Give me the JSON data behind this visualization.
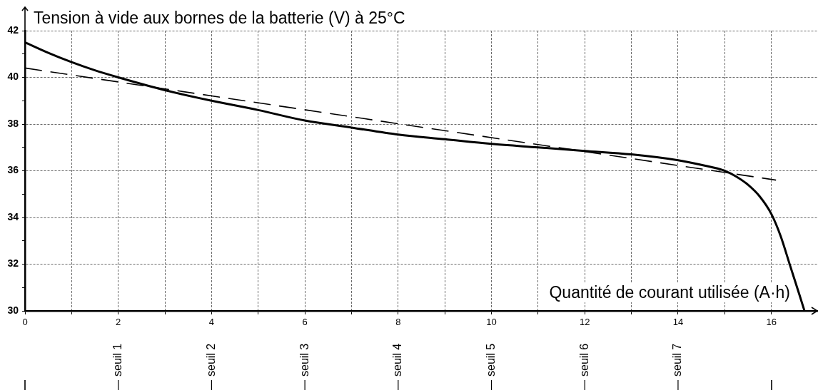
{
  "chart_data": {
    "type": "line",
    "xlabel": "Quantité de courant utilisée (A·h)",
    "ylabel": "Tension à vide aux bornes de la batterie (V) à 25°C",
    "series": [
      {
        "color": "#000000",
        "line_style": "solid",
        "x": [
          0,
          0.5,
          1,
          1.5,
          2,
          3,
          4,
          5,
          6,
          7,
          8,
          9,
          10,
          11,
          12,
          13,
          14,
          14.5,
          15,
          15.25,
          15.5,
          15.75,
          16,
          16.2,
          16.4,
          16.6,
          16.71
        ],
        "values": [
          41.5,
          41.05,
          40.65,
          40.3,
          40.0,
          39.45,
          39.0,
          38.6,
          38.15,
          37.85,
          37.55,
          37.35,
          37.15,
          37.0,
          36.85,
          36.7,
          36.45,
          36.25,
          36.0,
          35.75,
          35.4,
          34.9,
          34.15,
          33.2,
          31.95,
          30.7,
          30.0
        ]
      },
      {
        "color": "#000000",
        "line_style": "dashed",
        "x": [
          0,
          16.1
        ],
        "values": [
          40.4,
          35.6
        ]
      }
    ],
    "xlim": [
      0,
      17
    ],
    "ylim": [
      30,
      42
    ],
    "xticks": [
      0,
      {
        "value": 1,
        "label": null
      },
      2,
      {
        "value": 3,
        "label": null
      },
      4,
      {
        "value": 5,
        "label": null
      },
      6,
      {
        "value": 7,
        "label": null
      },
      8,
      {
        "value": 9,
        "label": null
      },
      10,
      {
        "value": 11,
        "label": null
      },
      12,
      {
        "value": 13,
        "label": null
      },
      14,
      {
        "value": 15,
        "label": null
      },
      16
    ],
    "yticks": [
      30,
      {
        "value": 31,
        "label": null
      },
      32,
      {
        "value": 33,
        "label": null
      },
      34,
      {
        "value": 35,
        "label": null
      },
      36,
      {
        "value": 37,
        "label": null
      },
      38,
      {
        "value": 39,
        "label": null
      },
      40,
      {
        "value": 41,
        "label": null
      },
      42
    ],
    "grid": true,
    "marker": "none",
    "ref_lines": [
      {
        "axis": "x",
        "value": 2,
        "label": "seuil 1"
      },
      {
        "axis": "x",
        "value": 4,
        "label": "seuil 2"
      },
      {
        "axis": "x",
        "value": 6,
        "label": "seuil 3"
      },
      {
        "axis": "x",
        "value": 8,
        "label": "seuil 4"
      },
      {
        "axis": "x",
        "value": 10,
        "label": "seuil 5"
      },
      {
        "axis": "x",
        "value": 12,
        "label": "seuil 6"
      },
      {
        "axis": "x",
        "value": 14,
        "label": "seuil 7"
      }
    ]
  }
}
